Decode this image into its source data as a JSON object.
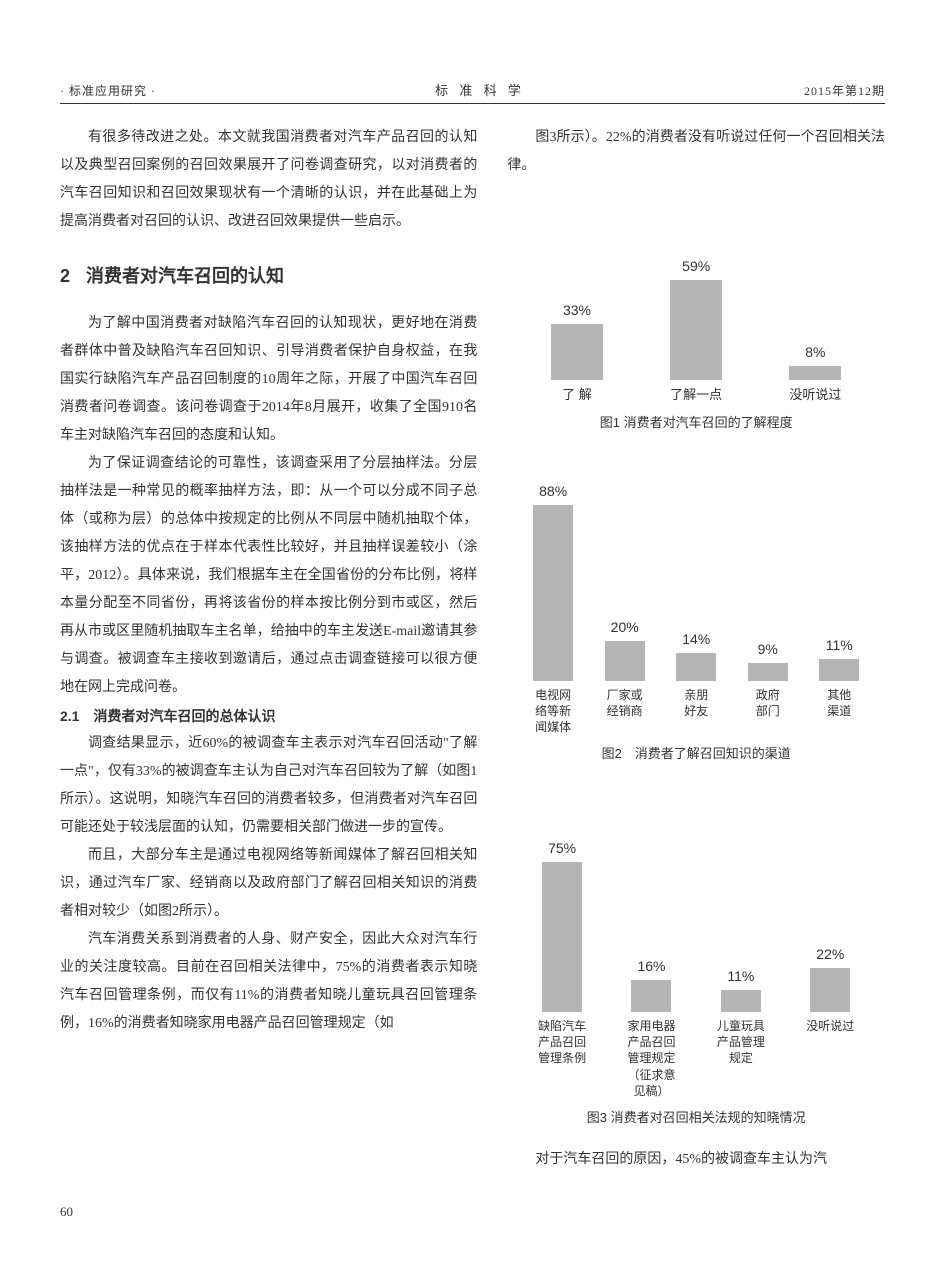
{
  "header": {
    "left": "· 标准应用研究 ·",
    "center": "标 准 科 学",
    "right": "2015年第12期"
  },
  "left_col": {
    "intro_para": "有很多待改进之处。本文就我国消费者对汽车产品召回的认知以及典型召回案例的召回效果展开了问卷调查研究，以对消费者的汽车召回知识和召回效果现状有一个清晰的认识，并在此基础上为提高消费者对召回的认识、改进召回效果提供一些启示。",
    "section2_num": "2",
    "section2_title": "消费者对汽车召回的认知",
    "p1": "为了解中国消费者对缺陷汽车召回的认知现状，更好地在消费者群体中普及缺陷汽车召回知识、引导消费者保护自身权益，在我国实行缺陷汽车产品召回制度的10周年之际，开展了中国汽车召回消费者问卷调查。该问卷调查于2014年8月展开，收集了全国910名车主对缺陷汽车召回的态度和认知。",
    "p2": "为了保证调查结论的可靠性，该调查采用了分层抽样法。分层抽样法是一种常见的概率抽样方法，即：从一个可以分成不同子总体（或称为层）的总体中按规定的比例从不同层中随机抽取个体，该抽样方法的优点在于样本代表性比较好，并且抽样误差较小（涂平，2012）。具体来说，我们根据车主在全国省份的分布比例，将样本量分配至不同省份，再将该省份的样本按比例分到市或区，然后再从市或区里随机抽取车主名单，给抽中的车主发送E-mail邀请其参与调查。被调查车主接收到邀请后，通过点击调查链接可以很方便地在网上完成问卷。",
    "sub21": "2.1　消费者对汽车召回的总体认识",
    "p3": "调查结果显示，近60%的被调查车主表示对汽车召回活动\"了解一点\"，仅有33%的被调查车主认为自己对汽车召回较为了解（如图1所示）。这说明，知晓汽车召回的消费者较多，但消费者对汽车召回可能还处于较浅层面的认知，仍需要相关部门做进一步的宣传。",
    "p4": "而且，大部分车主是通过电视网络等新闻媒体了解召回相关知识，通过汽车厂家、经销商以及政府部门了解召回相关知识的消费者相对较少（如图2所示）。",
    "p5": "汽车消费关系到消费者的人身、财产安全，因此大众对汽车行业的关注度较高。目前在召回相关法律中，75%的消费者表示知晓汽车召回管理条例，而仅有11%的消费者知晓儿童玩具召回管理条例，16%的消费者知晓家用电器产品召回管理规定（如"
  },
  "right_col": {
    "intro_cont": "图3所示）。22%的消费者没有听说过任何一个召回相关法律。",
    "trailing": "对于汽车召回的原因，45%的被调查车主认为汽"
  },
  "chart1": {
    "type": "bar",
    "bar_color": "#b5b5b5",
    "categories": [
      "了  解",
      "了解一点",
      "没听说过"
    ],
    "values": [
      33,
      59,
      8
    ],
    "value_labels": [
      "33%",
      "59%",
      "8%"
    ],
    "max": 100,
    "caption": "图1  消费者对汽车召回的了解程度"
  },
  "chart2": {
    "type": "bar",
    "bar_color": "#b5b5b5",
    "categories": [
      "电视网\n络等新\n闻媒体",
      "厂家或\n经销商",
      "亲朋\n好友",
      "政府\n部门",
      "其他\n渠道"
    ],
    "values": [
      88,
      20,
      14,
      9,
      11
    ],
    "value_labels": [
      "88%",
      "20%",
      "14%",
      "9%",
      "11%"
    ],
    "max": 100,
    "caption": "图2　消费者了解召回知识的渠道"
  },
  "chart3": {
    "type": "bar",
    "bar_color": "#b5b5b5",
    "categories": [
      "缺陷汽车\n产品召回\n管理条例",
      "家用电器\n产品召回\n管理规定\n（征求意\n见稿）",
      "儿童玩具\n产品管理\n规定",
      "没听说过"
    ],
    "values": [
      75,
      16,
      11,
      22
    ],
    "value_labels": [
      "75%",
      "16%",
      "11%",
      "22%"
    ],
    "max": 100,
    "caption": "图3  消费者对召回相关法规的知晓情况"
  },
  "page_number": "60"
}
